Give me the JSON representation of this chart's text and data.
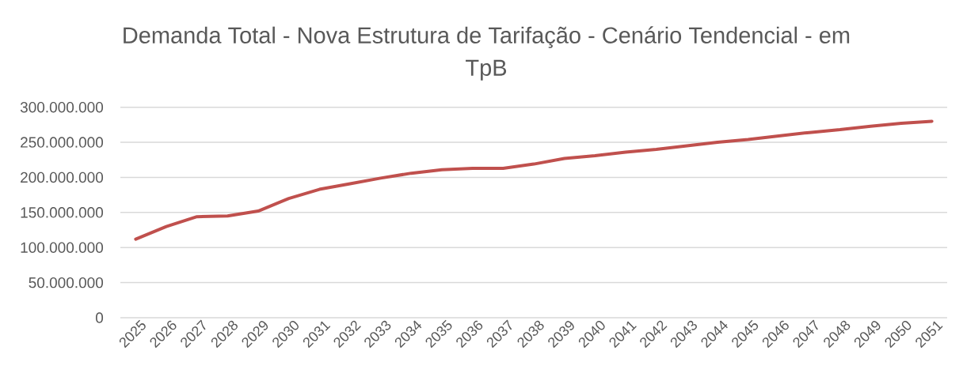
{
  "chart_data": {
    "type": "line",
    "title": "Demanda Total - Nova Estrutura de Tarifação - Cenário Tendencial - em TpB",
    "categories": [
      "2025",
      "2026",
      "2027",
      "2028",
      "2029",
      "2030",
      "2031",
      "2032",
      "2033",
      "2034",
      "2035",
      "2036",
      "2037",
      "2038",
      "2039",
      "2040",
      "2041",
      "2042",
      "2043",
      "2044",
      "2045",
      "2046",
      "2047",
      "2048",
      "2049",
      "2050",
      "2051"
    ],
    "values": [
      112000000,
      130000000,
      144000000,
      145000000,
      152000000,
      170000000,
      183000000,
      191000000,
      199000000,
      206000000,
      211000000,
      213000000,
      213000000,
      219000000,
      227000000,
      231000000,
      236000000,
      240000000,
      245000000,
      250000000,
      254000000,
      259000000,
      264000000,
      268000000,
      273000000,
      277000000,
      280000000
    ],
    "color": "#c0504d",
    "ylim": [
      0,
      300000000
    ],
    "yticks": [
      0,
      {
        "value": 50000000,
        "label": "50.000.000"
      },
      {
        "value": 100000000,
        "label": "100.000.000"
      },
      {
        "value": 150000000,
        "label": "150.000.000"
      },
      {
        "value": 200000000,
        "label": "200.000.000"
      },
      {
        "value": 250000000,
        "label": "250.000.000"
      },
      {
        "value": 300000000,
        "label": "300.000.000"
      }
    ],
    "grid": "y"
  }
}
